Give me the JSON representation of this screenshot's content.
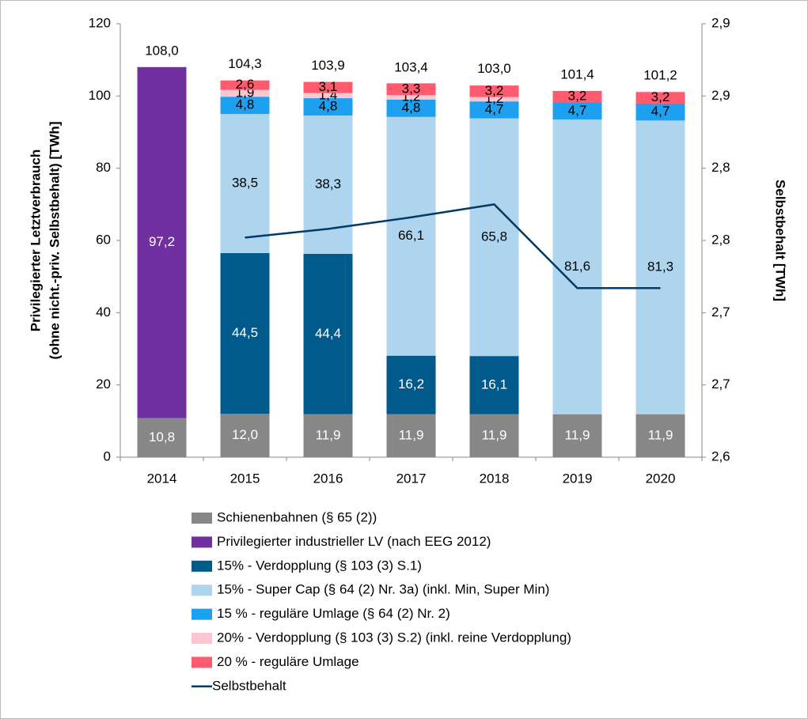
{
  "chart_data": {
    "type": "bar",
    "y_label": [
      "Privilegierter Letztverbrauch",
      "(ohne nicht.-priv. Selbstbehalt) [TWh]"
    ],
    "y2_label": "Selbstbehalt [TWh]",
    "categories": [
      "2014",
      "2015",
      "2016",
      "2017",
      "2018",
      "2019",
      "2020"
    ],
    "ylim": [
      0,
      120
    ],
    "yticks": [
      0,
      20,
      40,
      60,
      80,
      100,
      120
    ],
    "y2lim": [
      2.6,
      2.9
    ],
    "y2ticks": [
      {
        "value": 2.6,
        "label": "2,6"
      },
      {
        "value": 2.65,
        "label": "2,7"
      },
      {
        "value": 2.7,
        "label": "2,7"
      },
      {
        "value": 2.75,
        "label": "2,8"
      },
      {
        "value": 2.8,
        "label": "2,8"
      },
      {
        "value": 2.85,
        "label": "2,9"
      },
      {
        "value": 2.9,
        "label": "2,9"
      }
    ],
    "series": [
      {
        "name": "Schienenbahnen (§ 65 (2))",
        "color": "#878787",
        "label_color": "#ffffff",
        "values": [
          10.8,
          12.0,
          11.9,
          11.9,
          11.9,
          11.9,
          11.9
        ],
        "value_labels": [
          "10,8",
          "12,0",
          "11,9",
          "11,9",
          "11,9",
          "11,9",
          "11,9"
        ]
      },
      {
        "name": "Privilegierter industrieller LV (nach EEG 2012)",
        "color": "#7030a0",
        "label_color": "#ffffff",
        "values": [
          97.2,
          null,
          null,
          null,
          null,
          null,
          null
        ],
        "value_labels": [
          "97,2",
          null,
          null,
          null,
          null,
          null,
          null
        ]
      },
      {
        "name": "15% - Verdopplung (§ 103 (3) S.1)",
        "color": "#005a8c",
        "label_color": "#ffffff",
        "values": [
          null,
          44.5,
          44.4,
          16.2,
          16.1,
          null,
          null
        ],
        "value_labels": [
          null,
          "44,5",
          "44,4",
          "16,2",
          "16,1",
          null,
          null
        ]
      },
      {
        "name": "15% - Super Cap (§ 64 (2) Nr. 3a) (inkl. Min, Super Min)",
        "color": "#aed4ee",
        "label_color": "#000000",
        "values": [
          null,
          38.5,
          38.3,
          66.1,
          65.8,
          81.6,
          81.3
        ],
        "value_labels": [
          null,
          "38,5",
          "38,3",
          "66,1",
          "65,8",
          "81,6",
          "81,3"
        ]
      },
      {
        "name": "15 % - reguläre Umlage (§ 64 (2) Nr. 2)",
        "color": "#1ea0f0",
        "label_color": "#000000",
        "values": [
          null,
          4.8,
          4.8,
          4.8,
          4.7,
          4.7,
          4.7
        ],
        "value_labels": [
          null,
          "4,8",
          "4,8",
          "4,8",
          "4,7",
          "4,7",
          "4,7"
        ]
      },
      {
        "name": "20% - Verdopplung (§ 103 (3) S.2) (inkl. reine Verdopplung)",
        "color": "#ffc6d0",
        "label_color": "#000000",
        "values": [
          null,
          1.9,
          1.4,
          1.2,
          1.2,
          null,
          null
        ],
        "value_labels": [
          null,
          "1,9",
          "1,4",
          "1,2",
          "1,2",
          null,
          null
        ]
      },
      {
        "name": "20 % - reguläre Umlage",
        "color": "#ff5a6e",
        "label_color": "#000000",
        "values": [
          null,
          2.6,
          3.1,
          3.3,
          3.2,
          3.2,
          3.2
        ],
        "value_labels": [
          null,
          "2,6",
          "3,1",
          "3,3",
          "3,2",
          "3,2",
          "3,2"
        ]
      },
      {
        "name": "Selbstbehalt",
        "type": "line",
        "axis": "y2",
        "color": "#003b6a",
        "values": [
          null,
          2.752,
          2.758,
          2.766,
          2.775,
          2.717,
          2.717
        ]
      }
    ],
    "totals": {
      "values": [
        108.0,
        104.3,
        103.9,
        103.4,
        103.0,
        101.4,
        101.2
      ],
      "value_labels": [
        "108,0",
        "104,3",
        "103,9",
        "103,4",
        "103,0",
        "101,4",
        "101,2"
      ]
    }
  }
}
